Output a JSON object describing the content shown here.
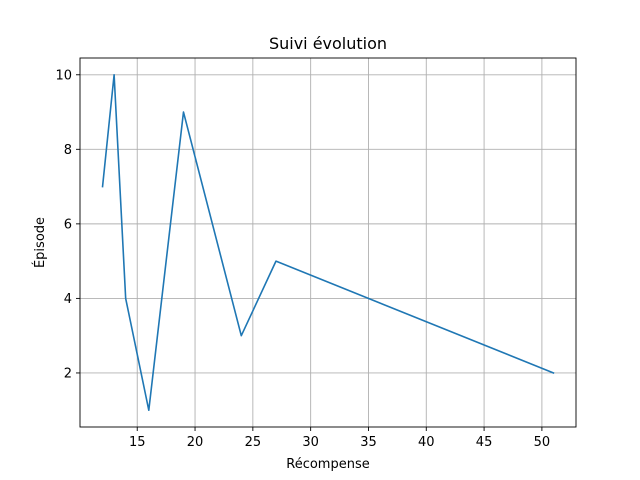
{
  "chart_data": {
    "type": "line",
    "title": "Suivi évolution",
    "xlabel": "Récompense",
    "ylabel": "Épisode",
    "xlim": [
      10.05,
      52.95
    ],
    "ylim": [
      0.55,
      10.45
    ],
    "xticks": [
      15,
      20,
      25,
      30,
      35,
      40,
      45,
      50
    ],
    "yticks": [
      2,
      4,
      6,
      8,
      10
    ],
    "grid": true,
    "series": [
      {
        "color": "#1f77b4",
        "points": [
          {
            "x": 12,
            "y": 7
          },
          {
            "x": 13,
            "y": 10
          },
          {
            "x": 14,
            "y": 4
          },
          {
            "x": 16,
            "y": 1
          },
          {
            "x": 19,
            "y": 9
          },
          {
            "x": 24,
            "y": 3
          },
          {
            "x": 27,
            "y": 5
          },
          {
            "x": 51,
            "y": 2
          }
        ]
      }
    ]
  }
}
